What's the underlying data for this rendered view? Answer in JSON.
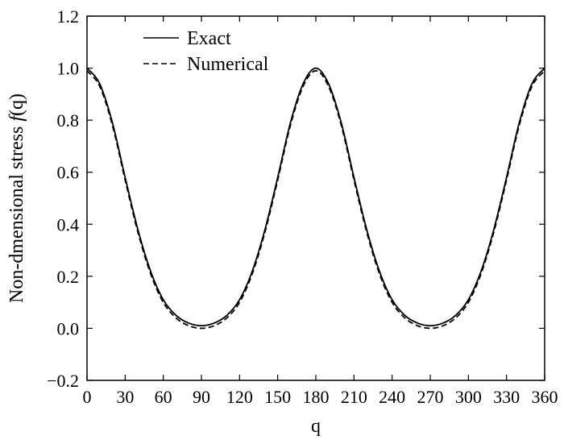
{
  "chart_data": {
    "type": "line",
    "title": "",
    "xlabel": "q",
    "ylabel_prefix": "Non-dmensional stress ",
    "ylabel_func": "f",
    "ylabel_suffix": "(q)",
    "xlim": [
      0,
      360
    ],
    "ylim": [
      -0.2,
      1.2
    ],
    "xticks": [
      0,
      30,
      60,
      90,
      120,
      150,
      180,
      210,
      240,
      270,
      300,
      330,
      360
    ],
    "yticks": [
      -0.2,
      0.0,
      0.2,
      0.4,
      0.6,
      0.8,
      1.0,
      1.2
    ],
    "ytick_labels": [
      "−0.2",
      "0.0",
      "0.2",
      "0.4",
      "0.6",
      "0.8",
      "1.0",
      "1.2"
    ],
    "grid": false,
    "legend_position": "top-left",
    "x": [
      0,
      10,
      20,
      30,
      40,
      50,
      60,
      70,
      80,
      90,
      100,
      110,
      120,
      130,
      140,
      150,
      160,
      170,
      180,
      190,
      200,
      210,
      220,
      230,
      240,
      250,
      260,
      270,
      280,
      290,
      300,
      310,
      320,
      330,
      340,
      350,
      360
    ],
    "series": [
      {
        "name": "Exact",
        "style": "solid",
        "values": [
          1.0,
          0.94,
          0.79,
          0.58,
          0.38,
          0.22,
          0.11,
          0.05,
          0.02,
          0.01,
          0.02,
          0.05,
          0.11,
          0.22,
          0.38,
          0.58,
          0.79,
          0.94,
          1.0,
          0.94,
          0.79,
          0.58,
          0.38,
          0.22,
          0.11,
          0.05,
          0.02,
          0.01,
          0.02,
          0.05,
          0.11,
          0.22,
          0.38,
          0.58,
          0.79,
          0.94,
          1.0
        ]
      },
      {
        "name": "Numerical",
        "style": "dashed",
        "values": [
          0.99,
          0.93,
          0.78,
          0.57,
          0.37,
          0.21,
          0.1,
          0.04,
          0.01,
          0.0,
          0.01,
          0.04,
          0.1,
          0.21,
          0.37,
          0.57,
          0.78,
          0.93,
          0.99,
          0.93,
          0.78,
          0.57,
          0.37,
          0.21,
          0.1,
          0.04,
          0.01,
          0.0,
          0.01,
          0.04,
          0.1,
          0.21,
          0.37,
          0.57,
          0.78,
          0.93,
          0.99
        ]
      }
    ]
  }
}
